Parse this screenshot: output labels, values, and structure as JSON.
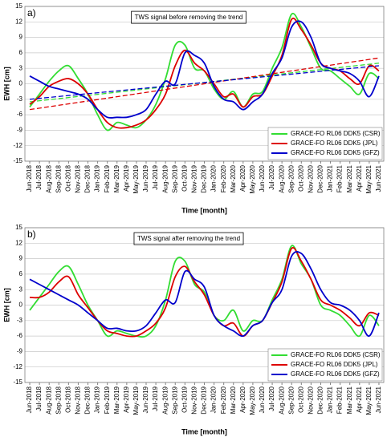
{
  "chart_data": [
    {
      "type": "line",
      "panel_label": "a)",
      "annotation": "TWS signal before removing the trend",
      "ylabel": "EWH [cm]",
      "xlabel": "Time [month]",
      "categories": [
        "Jun-2018",
        "Jul-2018",
        "Aug-2018",
        "Sep-2018",
        "Oct-2018",
        "Nov-2018",
        "Dec-2018",
        "Jan-2019",
        "Feb-2019",
        "Mar-2019",
        "Apr-2019",
        "May-2019",
        "Jun-2019",
        "Jul-2019",
        "Aug-2019",
        "Sep-2019",
        "Oct-2019",
        "Nov-2019",
        "Dec-2019",
        "Jan-2020",
        "Feb-2020",
        "Mar-2020",
        "Apr-2020",
        "May-2020",
        "Jun-2020",
        "Jul-2020",
        "Aug-2020",
        "Sep-2020",
        "Oct-2020",
        "Nov-2020",
        "Dec-2020",
        "Jan-2021",
        "Feb-2021",
        "Mar-2021",
        "Apr-2021",
        "May-2021",
        "Jun-2021"
      ],
      "ylim": [
        -15,
        15
      ],
      "yticks": [
        -15,
        -12,
        -9,
        -6,
        -3,
        0,
        3,
        6,
        9,
        12,
        15
      ],
      "grid": true,
      "legend": "lower right",
      "series": [
        {
          "name": "GRACE-FO RL06 DDK5 (CSR)",
          "color": "#33dd33",
          "trend": [
            -3.5,
            4
          ],
          "values": [
            -4.5,
            -2,
            0.5,
            2.5,
            3.5,
            1,
            -2,
            -6,
            -9,
            -7.5,
            -8,
            -8.5,
            -7,
            -4,
            1,
            7.5,
            7.5,
            3,
            2.5,
            -1,
            -3,
            -1.5,
            -4.5,
            -2,
            -1.5,
            3,
            7,
            13.5,
            11,
            7,
            3,
            2.5,
            1,
            -0.5,
            -2,
            2,
            1
          ]
        },
        {
          "name": "GRACE-FO RL06 DDK5 (JPL)",
          "color": "#dd0000",
          "trend": [
            -5,
            5
          ],
          "values": [
            -4,
            -2.5,
            -0.5,
            0.5,
            1,
            0,
            -2,
            -5,
            -7.5,
            -8.5,
            -8.5,
            -8,
            -7,
            -5,
            -2,
            3.5,
            6.5,
            4,
            2.5,
            0,
            -2.5,
            -2,
            -4.5,
            -2.5,
            -2,
            1.5,
            5.5,
            12.5,
            10.5,
            7.5,
            4,
            3,
            2.5,
            1,
            0,
            3.5,
            2.5
          ]
        },
        {
          "name": "GRACE-FO RL06 DDK5 (GFZ)",
          "color": "#0000cc",
          "trend": [
            -3,
            3.5
          ],
          "values": [
            1.5,
            0.5,
            -0.5,
            -1,
            -1.5,
            -2,
            -3,
            -5,
            -6.5,
            -6.5,
            -6.5,
            -6,
            -5,
            -2,
            0.5,
            0,
            6,
            5.5,
            4,
            -0.5,
            -3,
            -3.5,
            -5,
            -3.5,
            -2,
            2,
            5,
            11,
            12,
            9,
            4,
            3,
            2.5,
            2,
            0.5,
            -2.5,
            1.5
          ]
        }
      ]
    },
    {
      "type": "line",
      "panel_label": "b)",
      "annotation": "TWS signal after removing the trend",
      "ylabel": "EWH [cm]",
      "xlabel": "Time [month]",
      "categories": [
        "Jun-2018",
        "Jul-2018",
        "Aug-2018",
        "Sep-2018",
        "Oct-2018",
        "Nov-2018",
        "Dec-2018",
        "Jan-2019",
        "Feb-2019",
        "Mar-2019",
        "Apr-2019",
        "May-2019",
        "Jun-2019",
        "Jul-2019",
        "Aug-2019",
        "Sep-2019",
        "Oct-2019",
        "Nov-2019",
        "Dec-2019",
        "Jan-2020",
        "Feb-2020",
        "Mar-2020",
        "Apr-2020",
        "May-2020",
        "Jun-2020",
        "Jul-2020",
        "Aug-2020",
        "Sep-2020",
        "Oct-2020",
        "Nov-2020",
        "Dec-2020",
        "Jan-2021",
        "Feb-2021",
        "Mar-2021",
        "Apr-2021",
        "May-2021",
        "Jun-2021"
      ],
      "ylim": [
        -15,
        15
      ],
      "yticks": [
        -15,
        -12,
        -9,
        -6,
        -3,
        0,
        3,
        6,
        9,
        12,
        15
      ],
      "grid": true,
      "legend": "lower right",
      "series": [
        {
          "name": "GRACE-FO RL06 DDK5 (CSR)",
          "color": "#33dd33",
          "values": [
            -1,
            1.5,
            4,
            6.5,
            7.5,
            4,
            0,
            -3,
            -6,
            -5,
            -5.5,
            -6,
            -6,
            -4,
            1,
            8.5,
            8.5,
            4,
            2.5,
            -2,
            -3,
            -1,
            -5,
            -3,
            -3,
            1,
            5,
            11.5,
            8,
            5,
            0,
            -1,
            -2,
            -4,
            -6,
            -2,
            -4
          ]
        },
        {
          "name": "GRACE-FO RL06 DDK5 (JPL)",
          "color": "#dd0000",
          "values": [
            1.5,
            1.5,
            2.5,
            4.5,
            5.5,
            2,
            -0.5,
            -3,
            -5,
            -5.5,
            -6,
            -6,
            -5,
            -3.5,
            -0.5,
            5.5,
            7.5,
            4.5,
            2,
            -2,
            -4,
            -3.5,
            -6,
            -4,
            -3,
            0.5,
            4.5,
            11,
            8.5,
            5,
            1,
            0,
            -1,
            -2.5,
            -4,
            -1.5,
            -2
          ]
        },
        {
          "name": "GRACE-FO RL06 DDK5 (GFZ)",
          "color": "#0000cc",
          "values": [
            5,
            4,
            3,
            2,
            1,
            0,
            -1.5,
            -3,
            -4.5,
            -4.5,
            -5,
            -5,
            -4,
            -1.5,
            1,
            0.5,
            6.5,
            5,
            3.5,
            -2,
            -4,
            -5,
            -6,
            -4,
            -3,
            0.5,
            3,
            9.5,
            10,
            7,
            3,
            0.5,
            0,
            -1,
            -3,
            -6,
            -1.5
          ]
        }
      ]
    }
  ]
}
